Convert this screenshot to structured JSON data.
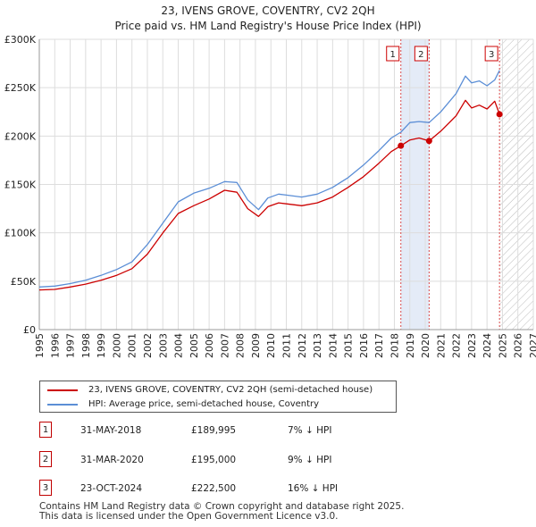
{
  "chart_data": {
    "type": "line",
    "title": "23, IVENS GROVE, COVENTRY, CV2 2QH",
    "subtitle": "Price paid vs. HM Land Registry's House Price Index (HPI)",
    "xlim": [
      1995,
      2027
    ],
    "ylim": [
      0,
      300000
    ],
    "x_ticks": [
      "1995",
      "1996",
      "1997",
      "1998",
      "1999",
      "2000",
      "2001",
      "2002",
      "2003",
      "2004",
      "2005",
      "2006",
      "2007",
      "2008",
      "2009",
      "2010",
      "2011",
      "2012",
      "2013",
      "2014",
      "2015",
      "2016",
      "2017",
      "2018",
      "2019",
      "2020",
      "2021",
      "2022",
      "2023",
      "2024",
      "2025",
      "2026",
      "2027"
    ],
    "y_ticks": [
      {
        "value": 0,
        "label": "£0"
      },
      {
        "value": 50000,
        "label": "£50K"
      },
      {
        "value": 100000,
        "label": "£100K"
      },
      {
        "value": 150000,
        "label": "£150K"
      },
      {
        "value": 200000,
        "label": "£200K"
      },
      {
        "value": 250000,
        "label": "£250K"
      },
      {
        "value": 300000,
        "label": "£300K"
      }
    ],
    "shaded_period": {
      "start": 2018.42,
      "end": 2020.25
    },
    "future_hatch_start": 2024.81,
    "series": [
      {
        "name": "23, IVENS GROVE, COVENTRY, CV2 2QH (semi-detached house)",
        "color": "#cc0000",
        "points": [
          [
            1995,
            41000
          ],
          [
            1996,
            41500
          ],
          [
            1997,
            44000
          ],
          [
            1998,
            47000
          ],
          [
            1999,
            51000
          ],
          [
            2000,
            56000
          ],
          [
            2001,
            63000
          ],
          [
            2002,
            78000
          ],
          [
            2003,
            100000
          ],
          [
            2004,
            120000
          ],
          [
            2005,
            128000
          ],
          [
            2006,
            135000
          ],
          [
            2007,
            144000
          ],
          [
            2007.8,
            142000
          ],
          [
            2008.5,
            125000
          ],
          [
            2009.2,
            117000
          ],
          [
            2009.8,
            127000
          ],
          [
            2010.5,
            131000
          ],
          [
            2011,
            130000
          ],
          [
            2012,
            128000
          ],
          [
            2013,
            131000
          ],
          [
            2014,
            137000
          ],
          [
            2015,
            147000
          ],
          [
            2016,
            158000
          ],
          [
            2017,
            172000
          ],
          [
            2017.8,
            184000
          ],
          [
            2018.42,
            189995
          ],
          [
            2019,
            196000
          ],
          [
            2019.6,
            198000
          ],
          [
            2020.25,
            195000
          ],
          [
            2021,
            205000
          ],
          [
            2022,
            221000
          ],
          [
            2022.6,
            237000
          ],
          [
            2023,
            229000
          ],
          [
            2023.5,
            232000
          ],
          [
            2024,
            228000
          ],
          [
            2024.5,
            236000
          ],
          [
            2024.81,
            222500
          ]
        ]
      },
      {
        "name": "HPI: Average price, semi-detached house, Coventry",
        "color": "#5b8ed6",
        "points": [
          [
            1995,
            44000
          ],
          [
            1996,
            45000
          ],
          [
            1997,
            47500
          ],
          [
            1998,
            51000
          ],
          [
            1999,
            56000
          ],
          [
            2000,
            62000
          ],
          [
            2001,
            70000
          ],
          [
            2002,
            88000
          ],
          [
            2003,
            110000
          ],
          [
            2004,
            132000
          ],
          [
            2005,
            141000
          ],
          [
            2006,
            146000
          ],
          [
            2007,
            153000
          ],
          [
            2007.8,
            152000
          ],
          [
            2008.5,
            134000
          ],
          [
            2009.2,
            124000
          ],
          [
            2009.8,
            136000
          ],
          [
            2010.5,
            140000
          ],
          [
            2011,
            139000
          ],
          [
            2012,
            137000
          ],
          [
            2013,
            140000
          ],
          [
            2014,
            147000
          ],
          [
            2015,
            157000
          ],
          [
            2016,
            170000
          ],
          [
            2017,
            185000
          ],
          [
            2017.8,
            198000
          ],
          [
            2018.42,
            204000
          ],
          [
            2019,
            214000
          ],
          [
            2019.6,
            215000
          ],
          [
            2020.25,
            214000
          ],
          [
            2021,
            225000
          ],
          [
            2022,
            244000
          ],
          [
            2022.6,
            262000
          ],
          [
            2023,
            255000
          ],
          [
            2023.5,
            257000
          ],
          [
            2024,
            252000
          ],
          [
            2024.5,
            258000
          ],
          [
            2024.81,
            268000
          ]
        ]
      }
    ],
    "markers": [
      {
        "label": "1",
        "x": 2018.42,
        "y": 189995
      },
      {
        "label": "2",
        "x": 2020.25,
        "y": 195000
      },
      {
        "label": "3",
        "x": 2024.81,
        "y": 222500
      }
    ]
  },
  "legend": {
    "red_label": "23, IVENS GROVE, COVENTRY, CV2 2QH (semi-detached house)",
    "blue_label": "HPI: Average price, semi-detached house, Coventry",
    "red_color": "#cc0000",
    "blue_color": "#5b8ed6"
  },
  "transactions": [
    {
      "num": "1",
      "date": "31-MAY-2018",
      "price": "£189,995",
      "hpi": "7% ↓ HPI"
    },
    {
      "num": "2",
      "date": "31-MAR-2020",
      "price": "£195,000",
      "hpi": "9% ↓ HPI"
    },
    {
      "num": "3",
      "date": "23-OCT-2024",
      "price": "£222,500",
      "hpi": "16% ↓ HPI"
    }
  ],
  "footer": {
    "line1": "Contains HM Land Registry data © Crown copyright and database right 2025.",
    "line2": "This data is licensed under the Open Government Licence v3.0."
  }
}
